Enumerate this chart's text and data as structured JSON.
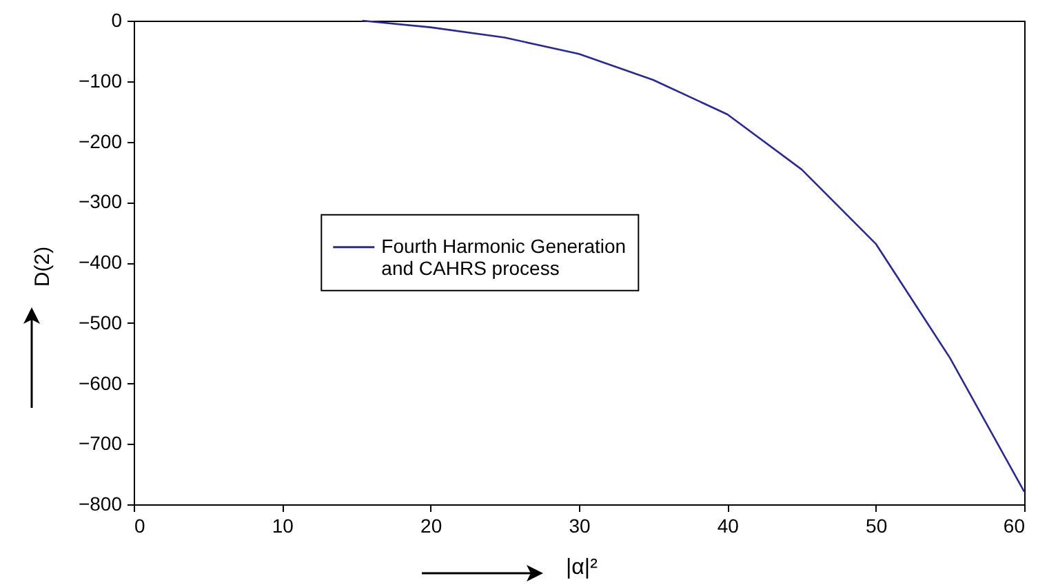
{
  "chart_data": {
    "type": "line",
    "xlabel": "|α|²",
    "ylabel": "D(2)",
    "xlim": [
      0,
      60
    ],
    "ylim": [
      -800,
      0
    ],
    "xticks": [
      0,
      10,
      20,
      30,
      40,
      50,
      60
    ],
    "yticks": [
      -800,
      -700,
      -600,
      -500,
      -400,
      -300,
      -200,
      -100,
      0
    ],
    "grid": false,
    "legend": "left",
    "series": [
      {
        "name": "Fourth Harmonic Generation and CAHRS process",
        "color": "#2a2a8c",
        "x": [
          15.4,
          20,
          25,
          30,
          35,
          40,
          45,
          50,
          55,
          60
        ],
        "values": [
          0,
          -11,
          -28,
          -55,
          -98,
          -155,
          -246,
          -369,
          -558,
          -779
        ]
      }
    ]
  }
}
